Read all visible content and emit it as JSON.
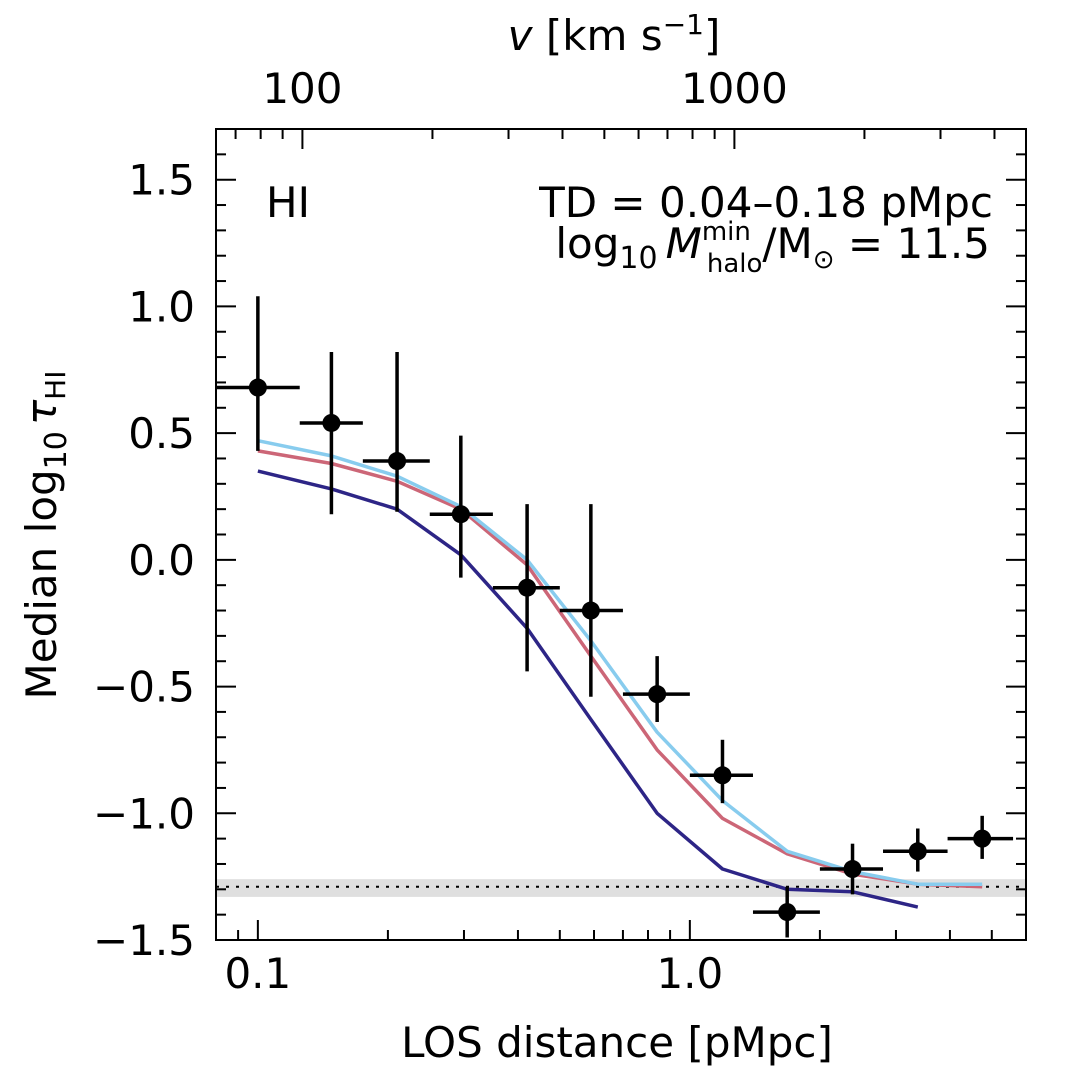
{
  "chart_data": {
    "type": "scatter",
    "panel_label": "HI",
    "annotation_line1": "TD = 0.04–0.18 pMpc",
    "annotation_line2_prefix": "log",
    "annotation_line2_sub10": "10",
    "annotation_line2_M": "M",
    "annotation_line2_sup": "min",
    "annotation_line2_sub": "halo",
    "annotation_line2_mid": "/M",
    "annotation_line2_sun": "⊙",
    "annotation_line2_suffix": " = 11.5",
    "xlabel": "LOS distance [pMpc]",
    "ylabel_main": "Median log",
    "ylabel_sub10": "10",
    "ylabel_tau": "τ",
    "ylabel_subHI": "HI",
    "top_xlabel_v": "v",
    "top_xlabel_units": " [km s",
    "top_xlabel_sup": "−1",
    "top_xlabel_close": "]",
    "xscale": "log",
    "xlim": [
      0.08,
      6.0
    ],
    "ylim": [
      -1.5,
      1.7
    ],
    "x_ticks": [
      0.1,
      1.0
    ],
    "x_tick_labels": [
      "0.1",
      "1.0"
    ],
    "y_ticks": [
      -1.5,
      -1.0,
      -0.5,
      0.0,
      0.5,
      1.0,
      1.5
    ],
    "y_tick_labels": [
      "−1.5",
      "−1.0",
      "−0.5",
      "0.0",
      "0.5",
      "1.0",
      "1.5"
    ],
    "top_axis_ticks_xpos": [
      0.1268,
      1.268
    ],
    "top_axis_tick_labels": [
      "100",
      "1000"
    ],
    "data_points": [
      {
        "x": 0.1,
        "y": 0.68,
        "xlo": 0.08,
        "xhi": 0.125,
        "ylo": 0.43,
        "yhi": 1.04
      },
      {
        "x": 0.148,
        "y": 0.54,
        "xlo": 0.125,
        "xhi": 0.175,
        "ylo": 0.18,
        "yhi": 0.82
      },
      {
        "x": 0.21,
        "y": 0.39,
        "xlo": 0.175,
        "xhi": 0.25,
        "ylo": 0.19,
        "yhi": 0.82
      },
      {
        "x": 0.295,
        "y": 0.18,
        "xlo": 0.25,
        "xhi": 0.35,
        "ylo": -0.07,
        "yhi": 0.49
      },
      {
        "x": 0.42,
        "y": -0.11,
        "xlo": 0.35,
        "xhi": 0.5,
        "ylo": -0.44,
        "yhi": 0.22
      },
      {
        "x": 0.59,
        "y": -0.2,
        "xlo": 0.5,
        "xhi": 0.7,
        "ylo": -0.54,
        "yhi": 0.22
      },
      {
        "x": 0.84,
        "y": -0.53,
        "xlo": 0.7,
        "xhi": 1.0,
        "ylo": -0.64,
        "yhi": -0.38
      },
      {
        "x": 1.19,
        "y": -0.85,
        "xlo": 1.0,
        "xhi": 1.4,
        "ylo": -0.96,
        "yhi": -0.71
      },
      {
        "x": 1.68,
        "y": -1.39,
        "xlo": 1.4,
        "xhi": 2.0,
        "ylo": -1.49,
        "yhi": -1.29
      },
      {
        "x": 2.38,
        "y": -1.22,
        "xlo": 2.0,
        "xhi": 2.8,
        "ylo": -1.32,
        "yhi": -1.12
      },
      {
        "x": 3.37,
        "y": -1.15,
        "xlo": 2.8,
        "xhi": 3.95,
        "ylo": -1.23,
        "yhi": -1.06
      },
      {
        "x": 4.75,
        "y": -1.1,
        "xlo": 3.95,
        "xhi": 5.6,
        "ylo": -1.18,
        "yhi": -1.01
      }
    ],
    "series": [
      {
        "color": "#2d2586",
        "x": [
          0.1,
          0.148,
          0.21,
          0.295,
          0.42,
          0.59,
          0.84,
          1.19,
          1.68,
          2.38,
          3.37
        ],
        "y": [
          0.35,
          0.28,
          0.2,
          0.02,
          -0.27,
          -0.63,
          -1.0,
          -1.22,
          -1.3,
          -1.31,
          -1.37
        ]
      },
      {
        "color": "#cc6677",
        "x": [
          0.1,
          0.148,
          0.21,
          0.295,
          0.42,
          0.59,
          0.84,
          1.19,
          1.68,
          2.38,
          3.37,
          4.75
        ],
        "y": [
          0.43,
          0.38,
          0.31,
          0.2,
          -0.02,
          -0.38,
          -0.75,
          -1.02,
          -1.16,
          -1.24,
          -1.28,
          -1.29
        ]
      },
      {
        "color": "#88ccee",
        "x": [
          0.1,
          0.148,
          0.21,
          0.295,
          0.42,
          0.59,
          0.84,
          1.19,
          1.68,
          2.38,
          3.37,
          4.75
        ],
        "y": [
          0.47,
          0.41,
          0.33,
          0.21,
          0.0,
          -0.32,
          -0.68,
          -0.95,
          -1.15,
          -1.23,
          -1.28,
          -1.28
        ]
      }
    ],
    "reference_line": {
      "y": -1.29,
      "band": [
        -1.33,
        -1.26
      ],
      "style": "dotted"
    }
  }
}
